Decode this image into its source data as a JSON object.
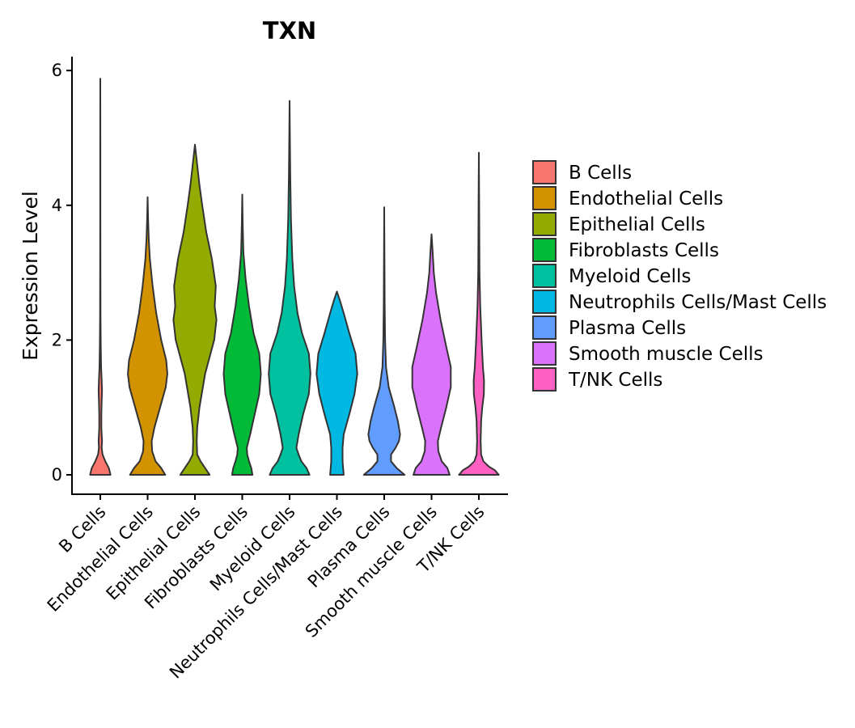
{
  "chart_data": {
    "type": "violin",
    "title": "TXN",
    "xlabel": "",
    "ylabel": "Expression Level",
    "ylim": [
      -0.3,
      6.2
    ],
    "yticks": [
      0,
      2,
      4,
      6
    ],
    "grid": false,
    "legend": "right",
    "categories": [
      "B Cells",
      "Endothelial Cells",
      "Epithelial Cells",
      "Fibroblasts Cells",
      "Myeloid Cells",
      "Neutrophils Cells/Mast Cells",
      "Plasma Cells",
      "Smooth muscle Cells",
      "T/NK Cells"
    ],
    "series": [
      {
        "name": "B Cells",
        "color": "#F8766D",
        "max": 5.88,
        "profile": [
          [
            0,
            0.45
          ],
          [
            0.1,
            0.38
          ],
          [
            0.2,
            0.22
          ],
          [
            0.3,
            0.1
          ],
          [
            0.4,
            0.06
          ],
          [
            0.5,
            0.075
          ],
          [
            0.7,
            0.045
          ],
          [
            0.9,
            0.045
          ],
          [
            1.1,
            0.06
          ],
          [
            1.25,
            0.075
          ],
          [
            1.4,
            0.06
          ],
          [
            1.6,
            0.035
          ],
          [
            1.9,
            0.02
          ],
          [
            2.3,
            0.012
          ],
          [
            3.0,
            0.006
          ],
          [
            4.0,
            0.004
          ],
          [
            5.0,
            0.003
          ],
          [
            5.88,
            0
          ]
        ]
      },
      {
        "name": "Endothelial Cells",
        "color": "#D39200",
        "max": 4.12,
        "profile": [
          [
            0,
            0.78
          ],
          [
            0.1,
            0.6
          ],
          [
            0.2,
            0.35
          ],
          [
            0.35,
            0.2
          ],
          [
            0.5,
            0.18
          ],
          [
            0.7,
            0.3
          ],
          [
            1.0,
            0.55
          ],
          [
            1.3,
            0.8
          ],
          [
            1.5,
            0.87
          ],
          [
            1.7,
            0.82
          ],
          [
            2.0,
            0.6
          ],
          [
            2.4,
            0.38
          ],
          [
            2.8,
            0.22
          ],
          [
            3.2,
            0.1
          ],
          [
            3.5,
            0.05
          ],
          [
            3.8,
            0.02
          ],
          [
            4.12,
            0
          ]
        ]
      },
      {
        "name": "Epithelial Cells",
        "color": "#93AA00",
        "max": 4.9,
        "profile": [
          [
            0,
            0.65
          ],
          [
            0.1,
            0.45
          ],
          [
            0.2,
            0.25
          ],
          [
            0.3,
            0.1
          ],
          [
            0.5,
            0.08
          ],
          [
            0.7,
            0.1
          ],
          [
            1.0,
            0.2
          ],
          [
            1.5,
            0.45
          ],
          [
            2.0,
            0.85
          ],
          [
            2.3,
            0.95
          ],
          [
            2.5,
            0.87
          ],
          [
            2.8,
            0.92
          ],
          [
            3.2,
            0.75
          ],
          [
            3.6,
            0.5
          ],
          [
            4.0,
            0.32
          ],
          [
            4.3,
            0.2
          ],
          [
            4.6,
            0.1
          ],
          [
            4.9,
            0
          ]
        ]
      },
      {
        "name": "Fibroblasts Cells",
        "color": "#00BA38",
        "max": 4.16,
        "profile": [
          [
            0,
            0.45
          ],
          [
            0.1,
            0.4
          ],
          [
            0.2,
            0.3
          ],
          [
            0.3,
            0.22
          ],
          [
            0.4,
            0.2
          ],
          [
            0.6,
            0.35
          ],
          [
            0.9,
            0.55
          ],
          [
            1.2,
            0.75
          ],
          [
            1.5,
            0.82
          ],
          [
            1.8,
            0.75
          ],
          [
            2.1,
            0.5
          ],
          [
            2.5,
            0.3
          ],
          [
            2.9,
            0.15
          ],
          [
            3.3,
            0.05
          ],
          [
            3.7,
            0.02
          ],
          [
            4.16,
            0
          ]
        ]
      },
      {
        "name": "Myeloid Cells",
        "color": "#00C19F",
        "max": 5.55,
        "profile": [
          [
            0,
            0.88
          ],
          [
            0.1,
            0.75
          ],
          [
            0.2,
            0.52
          ],
          [
            0.3,
            0.4
          ],
          [
            0.4,
            0.3
          ],
          [
            0.6,
            0.4
          ],
          [
            0.9,
            0.6
          ],
          [
            1.2,
            0.85
          ],
          [
            1.5,
            0.92
          ],
          [
            1.8,
            0.85
          ],
          [
            2.1,
            0.55
          ],
          [
            2.4,
            0.35
          ],
          [
            2.8,
            0.2
          ],
          [
            3.2,
            0.12
          ],
          [
            3.8,
            0.06
          ],
          [
            4.5,
            0.03
          ],
          [
            5.0,
            0.015
          ],
          [
            5.55,
            0
          ]
        ]
      },
      {
        "name": "Neutrophils Cells/Mast Cells",
        "color": "#00B9E3",
        "max": 2.72,
        "profile": [
          [
            0,
            0.3
          ],
          [
            0.2,
            0.25
          ],
          [
            0.4,
            0.25
          ],
          [
            0.6,
            0.3
          ],
          [
            0.9,
            0.55
          ],
          [
            1.2,
            0.78
          ],
          [
            1.5,
            0.9
          ],
          [
            1.8,
            0.82
          ],
          [
            2.1,
            0.55
          ],
          [
            2.4,
            0.3
          ],
          [
            2.6,
            0.12
          ],
          [
            2.72,
            0
          ]
        ]
      },
      {
        "name": "Plasma Cells",
        "color": "#619CFF",
        "max": 3.97,
        "profile": [
          [
            0,
            0.9
          ],
          [
            0.1,
            0.55
          ],
          [
            0.2,
            0.3
          ],
          [
            0.3,
            0.3
          ],
          [
            0.4,
            0.5
          ],
          [
            0.5,
            0.65
          ],
          [
            0.6,
            0.7
          ],
          [
            0.8,
            0.6
          ],
          [
            1.0,
            0.45
          ],
          [
            1.3,
            0.2
          ],
          [
            1.6,
            0.08
          ],
          [
            2.0,
            0.04
          ],
          [
            2.5,
            0.02
          ],
          [
            3.0,
            0.015
          ],
          [
            3.97,
            0
          ]
        ]
      },
      {
        "name": "Smooth muscle Cells",
        "color": "#DB72FB",
        "max": 3.57,
        "profile": [
          [
            0,
            0.8
          ],
          [
            0.1,
            0.7
          ],
          [
            0.2,
            0.45
          ],
          [
            0.35,
            0.3
          ],
          [
            0.5,
            0.28
          ],
          [
            0.7,
            0.42
          ],
          [
            1.0,
            0.65
          ],
          [
            1.3,
            0.85
          ],
          [
            1.6,
            0.85
          ],
          [
            1.9,
            0.65
          ],
          [
            2.3,
            0.4
          ],
          [
            2.7,
            0.2
          ],
          [
            3.0,
            0.1
          ],
          [
            3.3,
            0.05
          ],
          [
            3.57,
            0
          ]
        ]
      },
      {
        "name": "T/NK Cells",
        "color": "#FF61C3",
        "max": 4.78,
        "profile": [
          [
            0,
            0.88
          ],
          [
            0.07,
            0.7
          ],
          [
            0.12,
            0.45
          ],
          [
            0.2,
            0.2
          ],
          [
            0.3,
            0.1
          ],
          [
            0.5,
            0.08
          ],
          [
            0.8,
            0.1
          ],
          [
            1.0,
            0.15
          ],
          [
            1.2,
            0.22
          ],
          [
            1.4,
            0.23
          ],
          [
            1.6,
            0.18
          ],
          [
            2.0,
            0.12
          ],
          [
            2.5,
            0.06
          ],
          [
            3.0,
            0.03
          ],
          [
            4.0,
            0.015
          ],
          [
            4.78,
            0
          ]
        ]
      }
    ]
  }
}
